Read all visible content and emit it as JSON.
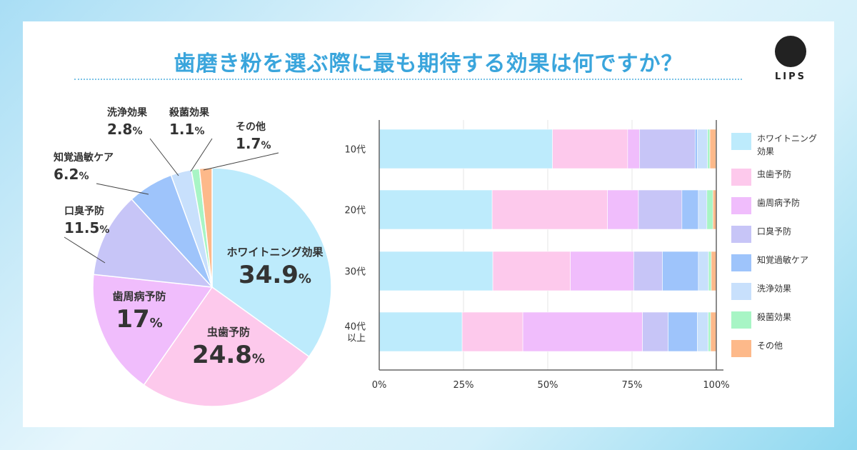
{
  "title": "歯磨き粉を選ぶ際に最も期待する効果は何ですか？",
  "logo": "LIPS",
  "chart_data": [
    {
      "type": "pie",
      "slices": [
        {
          "label": "ホワイトニング効果",
          "value": 34.9,
          "display": "34.9",
          "color": "#bdebfc"
        },
        {
          "label": "虫歯予防",
          "value": 24.8,
          "display": "24.8",
          "color": "#fdc9ec"
        },
        {
          "label": "歯周病予防",
          "value": 17,
          "display": "17",
          "color": "#f0bdfc"
        },
        {
          "label": "口臭予防",
          "value": 11.5,
          "display": "11.5",
          "color": "#c7c5f7"
        },
        {
          "label": "知覚過敏ケア",
          "value": 6.2,
          "display": "6.2",
          "color": "#9ec4fb"
        },
        {
          "label": "洗浄効果",
          "value": 2.8,
          "display": "2.8",
          "color": "#c8e0fc"
        },
        {
          "label": "殺菌効果",
          "value": 1.1,
          "display": "1.1",
          "color": "#a8f5c5"
        },
        {
          "label": "その他",
          "value": 1.7,
          "display": "1.7",
          "color": "#fdb98a"
        }
      ],
      "unit": "%"
    },
    {
      "type": "bar",
      "orientation": "horizontal",
      "stacked": true,
      "categories": [
        "10代",
        "20代",
        "30代",
        "40代\n以上"
      ],
      "xlim": [
        0,
        100
      ],
      "xticks": [
        "0%",
        "25%",
        "50%",
        "75%",
        "100%"
      ],
      "grid": true,
      "legend": "right",
      "series": [
        {
          "name": "ホワイトニング\n効果",
          "color": "#bdebfc",
          "values": [
            51.4,
            33.5,
            33.7,
            24.6
          ]
        },
        {
          "name": "虫歯予防",
          "color": "#fdc9ec",
          "values": [
            22.3,
            34.2,
            23.0,
            18.0
          ]
        },
        {
          "name": "歯周病予防",
          "color": "#f0bdfc",
          "values": [
            3.5,
            9.2,
            18.8,
            35.5
          ]
        },
        {
          "name": "口臭予防",
          "color": "#c7c5f7",
          "values": [
            16.5,
            12.9,
            8.5,
            7.6
          ]
        },
        {
          "name": "知覚過敏ケア",
          "color": "#9ec4fb",
          "values": [
            0.7,
            4.9,
            10.7,
            8.7
          ]
        },
        {
          "name": "洗浄効果",
          "color": "#c8e0fc",
          "values": [
            3.0,
            2.5,
            3.0,
            3.2
          ]
        },
        {
          "name": "殺菌効果",
          "color": "#a8f5c5",
          "values": [
            0.7,
            1.8,
            0.8,
            0.7
          ]
        },
        {
          "name": "その他",
          "color": "#fdb98a",
          "values": [
            1.8,
            1.0,
            1.5,
            1.8
          ]
        }
      ]
    }
  ]
}
